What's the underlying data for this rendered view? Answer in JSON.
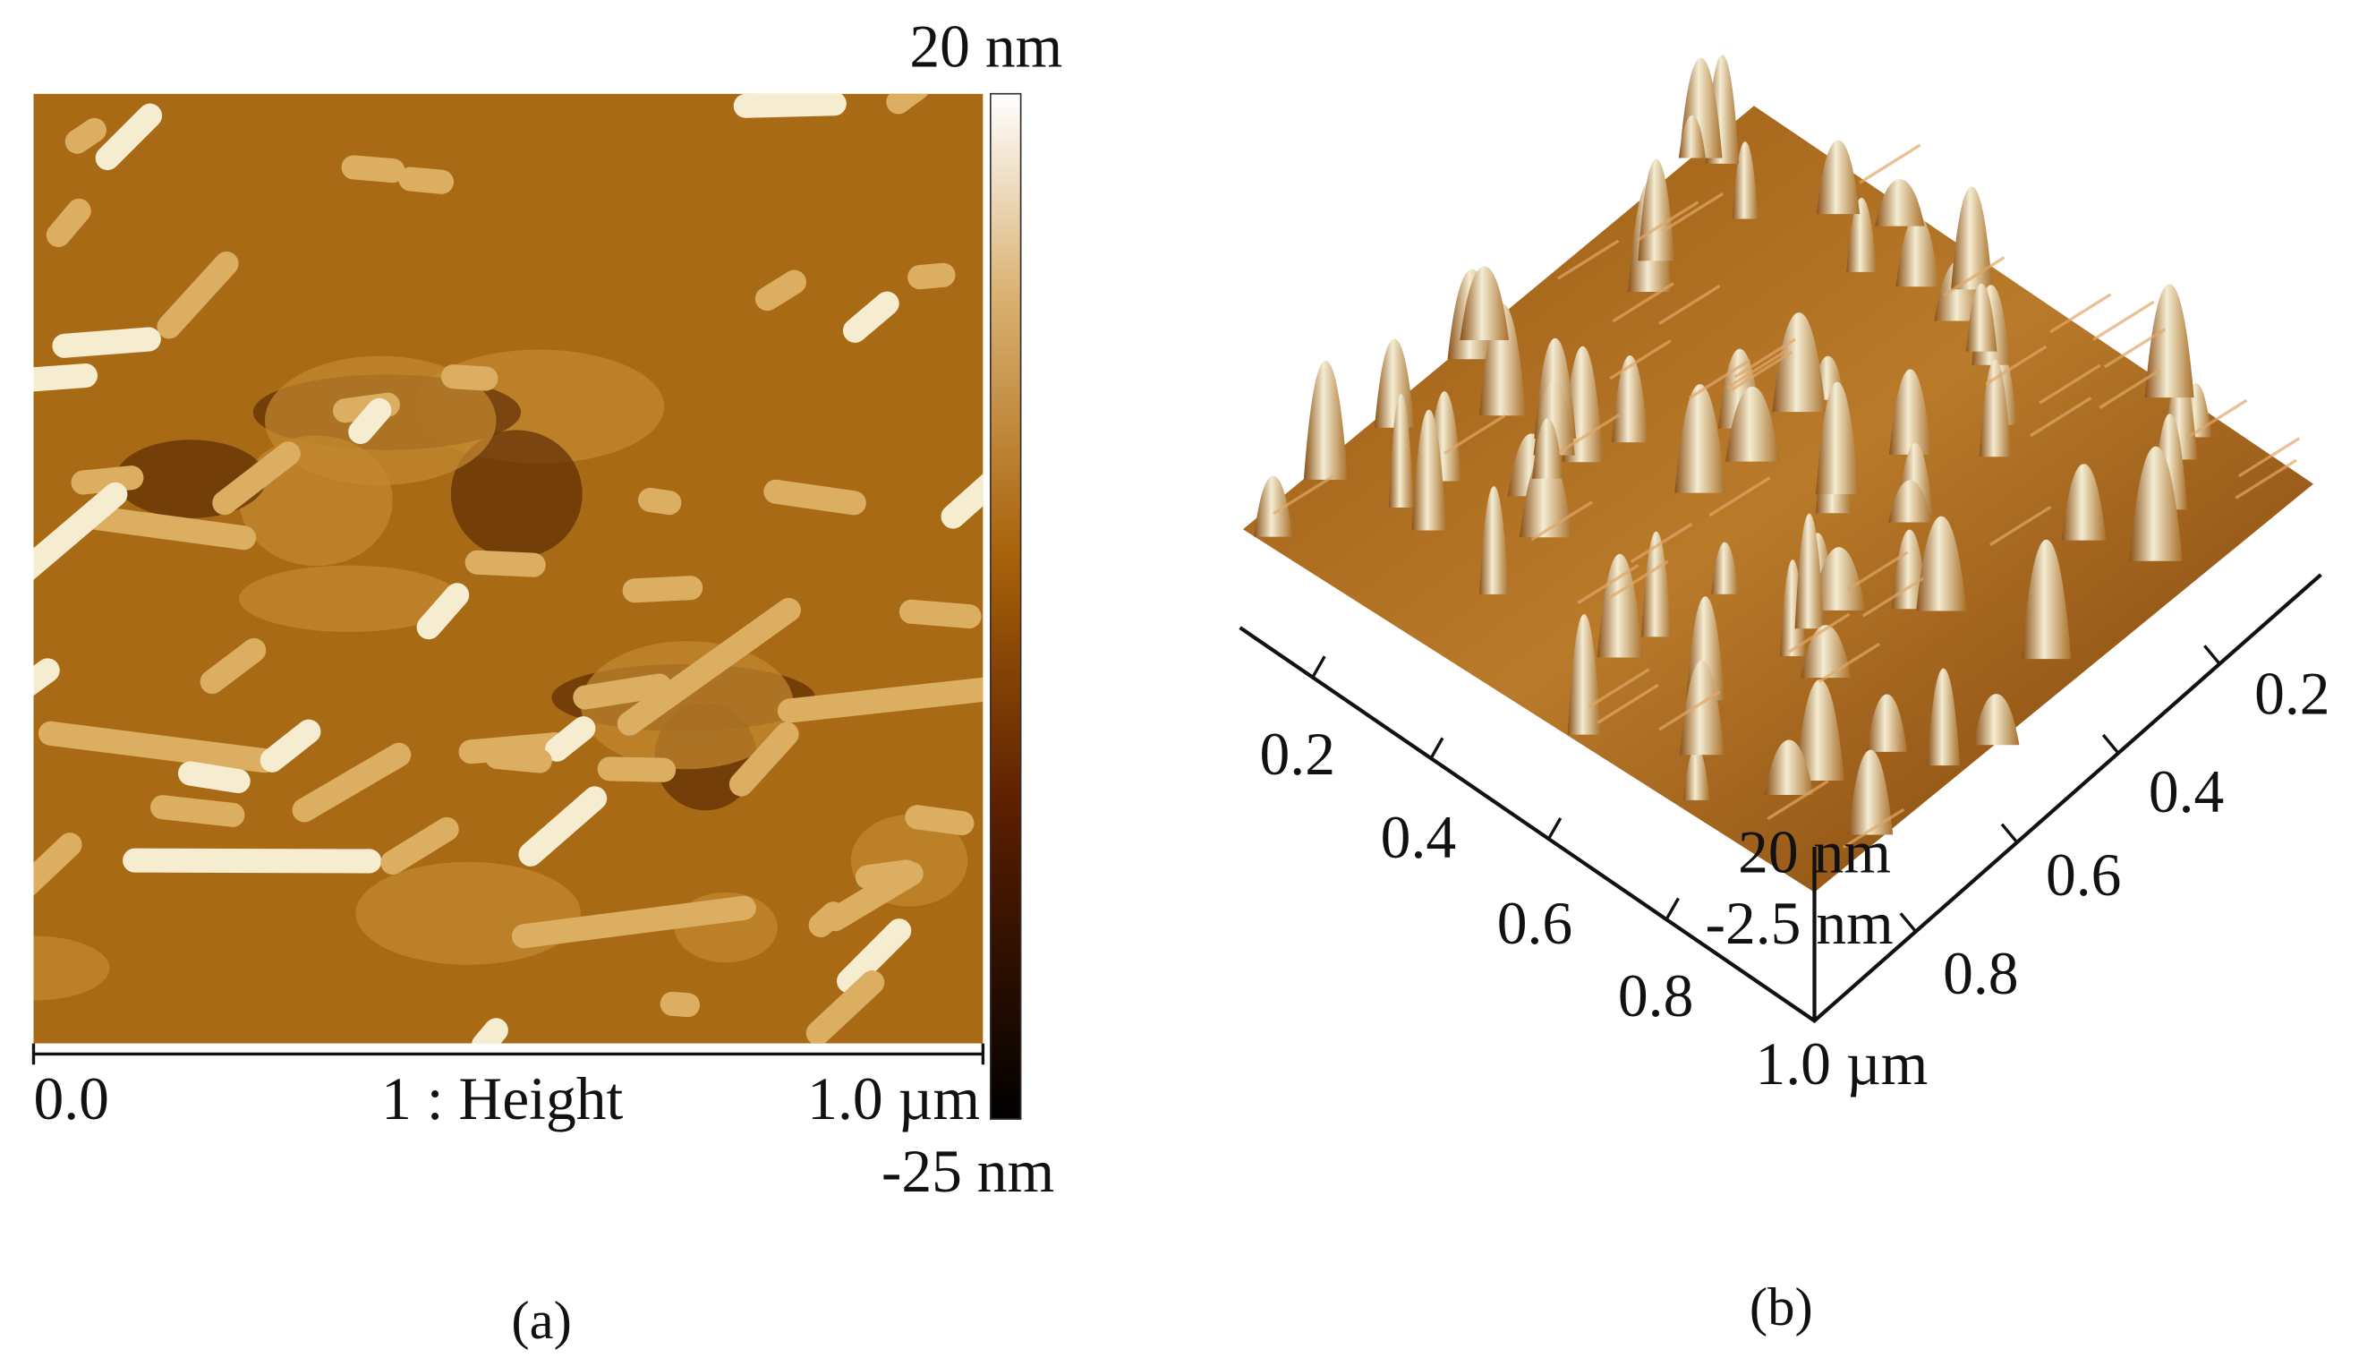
{
  "panel_a": {
    "scale_max": "20 nm",
    "scale_min": "-25 nm",
    "axis_start": "0.0",
    "channel": "1 :  Height",
    "axis_end": "1.0 µm",
    "caption": "(a)"
  },
  "panel_b": {
    "left_axis_ticks": [
      "0.2",
      "0.4",
      "0.6",
      "0.8",
      "1.0 µm"
    ],
    "right_axis_ticks": [
      "0.2",
      "0.4",
      "0.6",
      "0.8"
    ],
    "z_max": "20 nm",
    "z_min": "-2.5 nm",
    "caption": "(b)"
  }
}
